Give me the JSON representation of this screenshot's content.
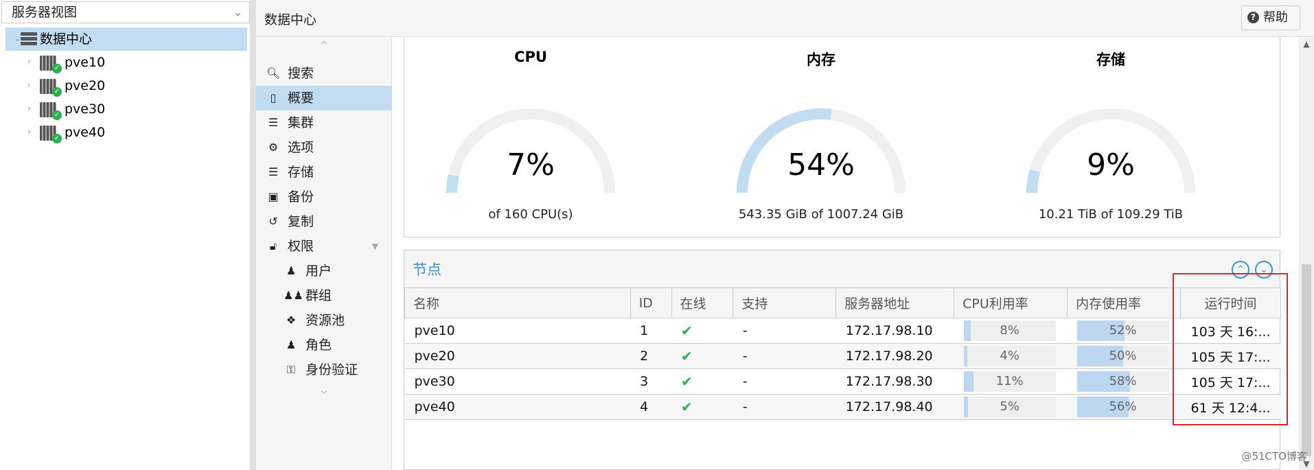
{
  "left_panel": {
    "view_select": "服务器视图",
    "tree": [
      {
        "label": "数据中心",
        "type": "datacenter",
        "selected": true
      },
      {
        "label": "pve10",
        "type": "node"
      },
      {
        "label": "pve20",
        "type": "node"
      },
      {
        "label": "pve30",
        "type": "node"
      },
      {
        "label": "pve40",
        "type": "node"
      }
    ]
  },
  "header": {
    "title": "数据中心",
    "help_label": "帮助"
  },
  "nav": {
    "items": [
      {
        "label": "搜索",
        "icon": "search-icon"
      },
      {
        "label": "概要",
        "icon": "book-icon",
        "selected": true
      },
      {
        "label": "集群",
        "icon": "server-icon"
      },
      {
        "label": "选项",
        "icon": "gear-icon"
      },
      {
        "label": "存储",
        "icon": "database-icon"
      },
      {
        "label": "备份",
        "icon": "floppy-icon"
      },
      {
        "label": "复制",
        "icon": "retweet-icon"
      },
      {
        "label": "权限",
        "icon": "unlock-icon"
      },
      {
        "label": "用户",
        "icon": "user-icon"
      },
      {
        "label": "群组",
        "icon": "users-icon"
      },
      {
        "label": "资源池",
        "icon": "tags-icon"
      },
      {
        "label": "角色",
        "icon": "male-icon"
      },
      {
        "label": "身份验证",
        "icon": "key-icon"
      }
    ]
  },
  "gauges": [
    {
      "title": "CPU",
      "value": "7%",
      "fraction": 0.07,
      "subtitle": "of 160 CPU(s)"
    },
    {
      "title": "内存",
      "value": "54%",
      "fraction": 0.54,
      "subtitle": "543.35 GiB of 1007.24 GiB"
    },
    {
      "title": "存储",
      "value": "9%",
      "fraction": 0.09,
      "subtitle": "10.21 TiB of 109.29 TiB"
    }
  ],
  "nodes": {
    "title": "节点",
    "columns": [
      "名称",
      "ID",
      "在线",
      "支持",
      "服务器地址",
      "CPU利用率",
      "内存使用率",
      "运行时间"
    ],
    "rows": [
      {
        "name": "pve10",
        "id": "1",
        "support": "-",
        "address": "172.17.98.10",
        "cpu": "8%",
        "cpu_frac": 0.08,
        "mem": "52%",
        "mem_frac": 0.52,
        "uptime": "103 天 16:..."
      },
      {
        "name": "pve20",
        "id": "2",
        "support": "-",
        "address": "172.17.98.20",
        "cpu": "4%",
        "cpu_frac": 0.04,
        "mem": "50%",
        "mem_frac": 0.5,
        "uptime": "105 天 17:..."
      },
      {
        "name": "pve30",
        "id": "3",
        "support": "-",
        "address": "172.17.98.30",
        "cpu": "11%",
        "cpu_frac": 0.11,
        "mem": "58%",
        "mem_frac": 0.58,
        "uptime": "105 天 17:..."
      },
      {
        "name": "pve40",
        "id": "4",
        "support": "-",
        "address": "172.17.98.40",
        "cpu": "5%",
        "cpu_frac": 0.05,
        "mem": "56%",
        "mem_frac": 0.56,
        "uptime": "61 天 12:4..."
      }
    ]
  },
  "watermark": "@51CTO博客",
  "colors": {
    "accent": "#3892d4",
    "selected": "#c2dcf2",
    "gauge_fill": "#c2dcf2",
    "gauge_track": "#f0f0f0",
    "highlight": "#d9262b",
    "ok": "#2ab04f"
  }
}
